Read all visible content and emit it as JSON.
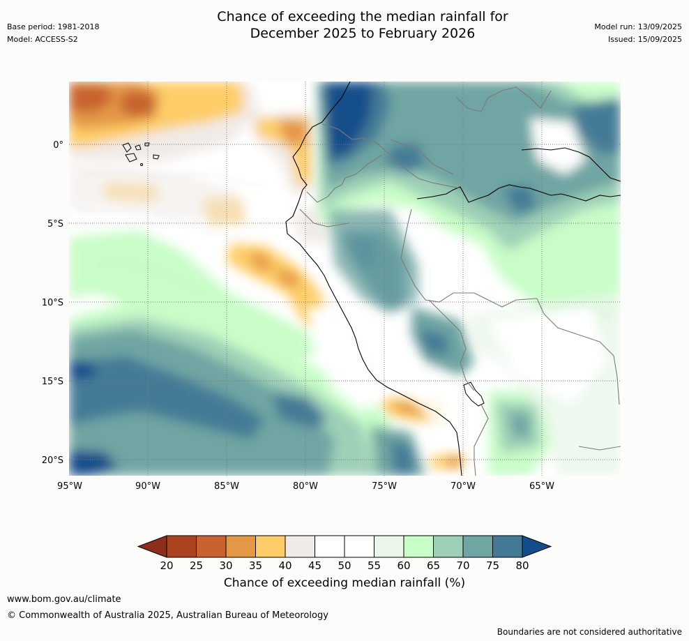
{
  "header": {
    "title_line1": "Chance of exceeding the median rainfall for",
    "title_line2": "December 2025 to February 2026",
    "base_period": "Base period: 1981-2018",
    "model": "Model: ACCESS-S2",
    "model_run": "Model run: 13/09/2025",
    "issued": "Issued: 15/09/2025"
  },
  "map": {
    "region": "Western South America and adjacent Pacific",
    "lon_range": [
      -95,
      -60
    ],
    "lat_range": [
      -21,
      4
    ],
    "x_ticks": [
      "95°W",
      "90°W",
      "85°W",
      "80°W",
      "75°W",
      "70°W",
      "65°W"
    ],
    "y_ticks": [
      "0°",
      "5°S",
      "10°S",
      "15°S",
      "20°S"
    ],
    "gridlines": true
  },
  "colorbar": {
    "title": "Chance of exceeding median rainfall (%)",
    "tick_labels": [
      "20",
      "25",
      "30",
      "35",
      "40",
      "45",
      "50",
      "55",
      "60",
      "65",
      "70",
      "75",
      "80"
    ],
    "colors": [
      "#ab4320",
      "#c8632f",
      "#e49846",
      "#fecd67",
      "#f0ebe7",
      "#ffffff",
      "#ffffff",
      "#eaf6ea",
      "#c8fdc8",
      "#9ed0b7",
      "#6fa5a3",
      "#447a96",
      "#134e8b"
    ],
    "below_color": "#8d2f1a",
    "above_color": "#0d3f78"
  },
  "footer": {
    "url": "www.bom.gov.au/climate",
    "copyright": "© Commonwealth of Australia 2025, Australian Bureau of Meteorology",
    "disclaimer": "Boundaries are not considered authoritative"
  }
}
